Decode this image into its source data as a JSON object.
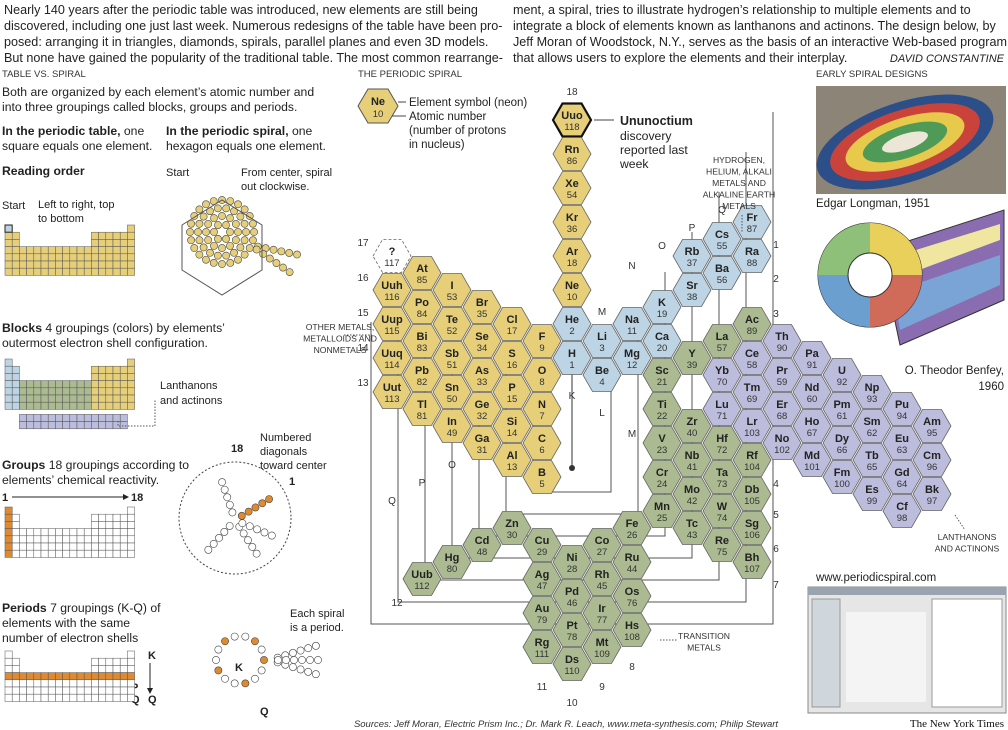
{
  "intro": {
    "left_lines": [
      "Nearly 140 years after the periodic table was introduced, new elements are still being",
      "discovered, including one just last week. Numerous redesigns of the table have been pro-",
      "posed: arranging it in triangles, diamonds, spirals, parallel planes and even 3D models.",
      "But none have gained the popularity of the traditional table. The most common rearrange-"
    ],
    "right_lines": [
      "ment, a spiral, tries to illustrate hydrogen’s relationship to multiple elements and to",
      "integrate a block of elements known as lanthanons and actinons. The design below, by",
      "Jeff Moran of Woodstock, N.Y., serves as the basis of an interactive Web-based program",
      "that allows users to explore the elements and their interplay."
    ],
    "byline": "DAVID CONSTANTINE"
  },
  "comparison": {
    "heading": "TABLE VS. SPIRAL",
    "summary_lines": [
      "Both are organized by each element’s atomic number and",
      "into three groupings called blocks, groups and periods."
    ],
    "table_note": {
      "lead": "In the periodic table,",
      "lines": [
        "one",
        "square equals one element."
      ]
    },
    "spiral_note": {
      "lead": "In the periodic spiral,",
      "lines": [
        "one",
        "hexagon equals one element."
      ]
    },
    "reading": {
      "title": "Reading order",
      "table_start": "Start",
      "table_lines": [
        "Left to right, top",
        "to bottom"
      ],
      "spiral_start": "Start",
      "spiral_lines": [
        "From center, spiral",
        "out clockwise."
      ]
    },
    "blocks": {
      "lead": "Blocks",
      "lines": [
        "4 groupings (colors) by elements’",
        "outermost electron shell configuration."
      ],
      "note_lines": [
        "Lanthanons",
        "and actinons"
      ]
    },
    "groups": {
      "lead": "Groups",
      "lines": [
        "18 groupings according to",
        "elements’ chemical reactivity."
      ],
      "table_first": 1,
      "table_last": 18,
      "spiral_first": 18,
      "spiral_last": 1,
      "note_lines": [
        "Numbered",
        "diagonals",
        "toward center"
      ]
    },
    "periods": {
      "lead": "Periods",
      "lines": [
        "7 groupings (K-Q) of",
        "elements with the same",
        "number of electron shells"
      ],
      "table_labels": [
        "K",
        "Q",
        "P",
        "Q"
      ],
      "spiral_labels": [
        "K",
        "Q"
      ],
      "note_lines": [
        "Each spiral",
        "is a period."
      ]
    }
  },
  "spiral": {
    "heading": "THE PERIODIC SPIRAL",
    "key": {
      "symbol": "Ne",
      "number": 10,
      "lines": [
        "Element symbol (neon)",
        "Atomic number",
        "(number of protons",
        "in nucleus)"
      ]
    },
    "callout": {
      "title": "Ununoctium",
      "lines": [
        "discovery",
        "reported last",
        "week"
      ]
    },
    "region_labels": [
      [
        "HYDROGEN,",
        "HELIUM, ALKALI",
        "METALS AND",
        "ALKALINE EARTH",
        "METALS"
      ],
      [
        "OTHER METALS,",
        "METALLOIDS AND",
        "NONMETALS"
      ],
      [
        "TRANSITION",
        "METALS"
      ],
      [
        "LANTHANONS",
        "AND ACTINONS"
      ]
    ],
    "group_labels": [
      18,
      17,
      16,
      15,
      14,
      13,
      12,
      11,
      10,
      9,
      8,
      7,
      6,
      5,
      4,
      3,
      2,
      1
    ],
    "period_labels": [
      "K",
      "L",
      "M",
      "N",
      "O",
      "P",
      "Q",
      "M",
      "O",
      "P",
      "Q"
    ],
    "blocks": [
      {
        "color": "#e6cf78",
        "elements": [
          {
            "symbol": "Uuo",
            "number": 118
          },
          {
            "symbol": "Rn",
            "number": 86
          },
          {
            "symbol": "Xe",
            "number": 54
          },
          {
            "symbol": "Kr",
            "number": 36
          },
          {
            "symbol": "Ar",
            "number": 18
          },
          {
            "symbol": "Ne",
            "number": 10
          },
          {
            "symbol": "F",
            "number": 9
          },
          {
            "symbol": "O",
            "number": 8
          },
          {
            "symbol": "N",
            "number": 7
          },
          {
            "symbol": "C",
            "number": 6
          },
          {
            "symbol": "B",
            "number": 5
          },
          {
            "symbol": "Cl",
            "number": 17
          },
          {
            "symbol": "S",
            "number": 16
          },
          {
            "symbol": "P",
            "number": 15
          },
          {
            "symbol": "Si",
            "number": 14
          },
          {
            "symbol": "Al",
            "number": 13
          },
          {
            "symbol": "Br",
            "number": 35
          },
          {
            "symbol": "Se",
            "number": 34
          },
          {
            "symbol": "As",
            "number": 33
          },
          {
            "symbol": "Ge",
            "number": 32
          },
          {
            "symbol": "Ga",
            "number": 31
          },
          {
            "symbol": "I",
            "number": 53
          },
          {
            "symbol": "Te",
            "number": 52
          },
          {
            "symbol": "Sb",
            "number": 51
          },
          {
            "symbol": "Sn",
            "number": 50
          },
          {
            "symbol": "In",
            "number": 49
          },
          {
            "symbol": "At",
            "number": 85
          },
          {
            "symbol": "Po",
            "number": 84
          },
          {
            "symbol": "Bi",
            "number": 83
          },
          {
            "symbol": "Pb",
            "number": 82
          },
          {
            "symbol": "Tl",
            "number": 81
          },
          {
            "symbol": "?",
            "number": 117
          },
          {
            "symbol": "Uuh",
            "number": 116
          },
          {
            "symbol": "Uup",
            "number": 115
          },
          {
            "symbol": "Uuq",
            "number": 114
          },
          {
            "symbol": "Uut",
            "number": 113
          }
        ]
      },
      {
        "color": "#bcd4e4",
        "elements": [
          {
            "symbol": "He",
            "number": 2
          },
          {
            "symbol": "H",
            "number": 1
          },
          {
            "symbol": "Li",
            "number": 3
          },
          {
            "symbol": "Be",
            "number": 4
          },
          {
            "symbol": "Na",
            "number": 11
          },
          {
            "symbol": "Mg",
            "number": 12
          },
          {
            "symbol": "K",
            "number": 19
          },
          {
            "symbol": "Ca",
            "number": 20
          },
          {
            "symbol": "Rb",
            "number": 37
          },
          {
            "symbol": "Sr",
            "number": 38
          },
          {
            "symbol": "Cs",
            "number": 55
          },
          {
            "symbol": "Ba",
            "number": 56
          },
          {
            "symbol": "Fr",
            "number": 87
          },
          {
            "symbol": "Ra",
            "number": 88
          }
        ]
      },
      {
        "color": "#abba90",
        "elements": [
          {
            "symbol": "Ac",
            "number": 89
          },
          {
            "symbol": "La",
            "number": 57
          },
          {
            "symbol": "Y",
            "number": 39
          },
          {
            "symbol": "Sc",
            "number": 21
          },
          {
            "symbol": "Ti",
            "number": 22
          },
          {
            "symbol": "V",
            "number": 23
          },
          {
            "symbol": "Cr",
            "number": 24
          },
          {
            "symbol": "Mn",
            "number": 25
          },
          {
            "symbol": "Zr",
            "number": 40
          },
          {
            "symbol": "Nb",
            "number": 41
          },
          {
            "symbol": "Mo",
            "number": 42
          },
          {
            "symbol": "Tc",
            "number": 43
          },
          {
            "symbol": "Hf",
            "number": 72
          },
          {
            "symbol": "Ta",
            "number": 73
          },
          {
            "symbol": "W",
            "number": 74
          },
          {
            "symbol": "Re",
            "number": 75
          },
          {
            "symbol": "Rf",
            "number": 104
          },
          {
            "symbol": "Db",
            "number": 105
          },
          {
            "symbol": "Sg",
            "number": 106
          },
          {
            "symbol": "Bh",
            "number": 107
          },
          {
            "symbol": "Fe",
            "number": 26
          },
          {
            "symbol": "Ru",
            "number": 44
          },
          {
            "symbol": "Os",
            "number": 76
          },
          {
            "symbol": "Hs",
            "number": 108
          },
          {
            "symbol": "Co",
            "number": 27
          },
          {
            "symbol": "Rh",
            "number": 45
          },
          {
            "symbol": "Ir",
            "number": 77
          },
          {
            "symbol": "Mt",
            "number": 109
          },
          {
            "symbol": "Ni",
            "number": 28
          },
          {
            "symbol": "Pd",
            "number": 46
          },
          {
            "symbol": "Pt",
            "number": 78
          },
          {
            "symbol": "Ds",
            "number": 110
          },
          {
            "symbol": "Cu",
            "number": 29
          },
          {
            "symbol": "Ag",
            "number": 47
          },
          {
            "symbol": "Au",
            "number": 79
          },
          {
            "symbol": "Rg",
            "number": 111
          },
          {
            "symbol": "Zn",
            "number": 30
          },
          {
            "symbol": "Cd",
            "number": 48
          },
          {
            "symbol": "Hg",
            "number": 80
          },
          {
            "symbol": "Uub",
            "number": 112
          }
        ]
      },
      {
        "color": "#bcbcdc",
        "elements": [
          {
            "symbol": "Ce",
            "number": 58
          },
          {
            "symbol": "Pr",
            "number": 59
          },
          {
            "symbol": "Nd",
            "number": 60
          },
          {
            "symbol": "Pm",
            "number": 61
          },
          {
            "symbol": "Sm",
            "number": 62
          },
          {
            "symbol": "Eu",
            "number": 63
          },
          {
            "symbol": "Gd",
            "number": 64
          },
          {
            "symbol": "Tb",
            "number": 65
          },
          {
            "symbol": "Dy",
            "number": 66
          },
          {
            "symbol": "Ho",
            "number": 67
          },
          {
            "symbol": "Er",
            "number": 68
          },
          {
            "symbol": "Tm",
            "number": 69
          },
          {
            "symbol": "Yb",
            "number": 70
          },
          {
            "symbol": "Lu",
            "number": 71
          },
          {
            "symbol": "Lr",
            "number": 103
          },
          {
            "symbol": "No",
            "number": 102
          },
          {
            "symbol": "Md",
            "number": 101
          },
          {
            "symbol": "Fm",
            "number": 100
          },
          {
            "symbol": "Es",
            "number": 99
          },
          {
            "symbol": "Cf",
            "number": 98
          },
          {
            "symbol": "Bk",
            "number": 97
          },
          {
            "symbol": "Cm",
            "number": 96
          },
          {
            "symbol": "Am",
            "number": 95
          },
          {
            "symbol": "Pu",
            "number": 94
          },
          {
            "symbol": "Np",
            "number": 93
          },
          {
            "symbol": "U",
            "number": 92
          },
          {
            "symbol": "Pa",
            "number": 91
          },
          {
            "symbol": "Th",
            "number": 90
          }
        ]
      }
    ],
    "source": "Sources: Jeff Moran, Electric Prism Inc.; Dr. Mark R. Leach, www.meta-synthesis.com; Philip Stewart"
  },
  "early_designs": {
    "heading": "EARLY SPIRAL DESIGNS",
    "longman_caption": "Edgar Longman, 1951",
    "benfey_lines": [
      "O. Theodor Benfey,",
      "1960"
    ],
    "website": "www.periodicspiral.com"
  },
  "credit": "The New York Times"
}
